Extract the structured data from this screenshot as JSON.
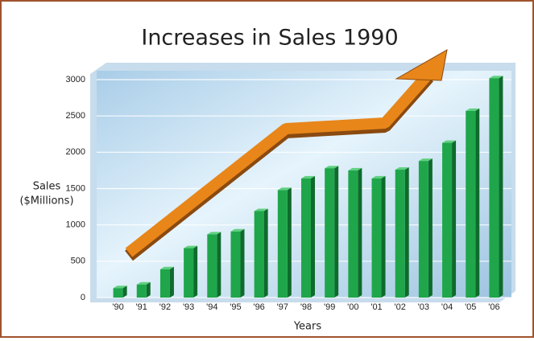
{
  "chart_data": {
    "type": "bar",
    "title": "Increases in Sales 1990",
    "y_label": [
      "Sales",
      "($Millions)"
    ],
    "x_label": "Years",
    "categories": [
      "'90",
      "'91",
      "'92",
      "'93",
      "'94",
      "'95",
      "'96",
      "'97",
      "'98",
      "'99",
      "'00",
      "'01",
      "'02",
      "'03",
      "'04",
      "'05",
      "'06"
    ],
    "values": [
      130,
      180,
      390,
      680,
      870,
      910,
      1190,
      1480,
      1640,
      1780,
      1750,
      1640,
      1760,
      1880,
      2130,
      2570,
      3020
    ],
    "color": "#1fa64a",
    "ylim": [
      0,
      3000
    ],
    "yticks": [
      0,
      500,
      1000,
      1500,
      2000,
      2500,
      3000
    ],
    "grid": true
  }
}
